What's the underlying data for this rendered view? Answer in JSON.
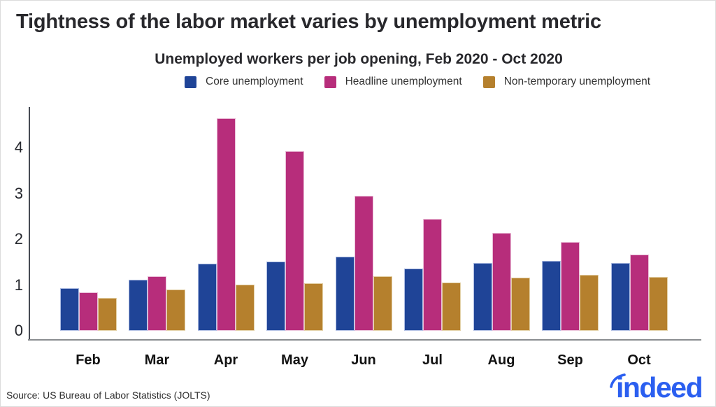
{
  "header": {
    "title": "Tightness of the labor market varies by unemployment metric",
    "subtitle": "Unemployed workers per job opening, Feb 2020 - Oct 2020"
  },
  "chart_data": {
    "type": "bar",
    "title": "Tightness of the labor market varies by unemployment metric",
    "subtitle": "Unemployed workers per job opening, Feb 2020 - Oct 2020",
    "categories": [
      "Feb",
      "Mar",
      "Apr",
      "May",
      "Jun",
      "Jul",
      "Aug",
      "Sep",
      "Oct"
    ],
    "series": [
      {
        "name": "Core unemployment",
        "color": "#1F4497",
        "border_color": "#AEBDE3",
        "values": [
          0.93,
          1.12,
          1.47,
          1.51,
          1.62,
          1.36,
          1.49,
          1.53,
          1.48
        ]
      },
      {
        "name": "Headline unemployment",
        "color": "#B72D7B",
        "border_color": "#EABFD8",
        "values": [
          0.84,
          1.2,
          4.65,
          3.93,
          2.95,
          2.45,
          2.14,
          1.94,
          1.67
        ]
      },
      {
        "name": "Non-temporary unemployment",
        "color": "#B5802D",
        "border_color": "#E2CFA4",
        "values": [
          0.72,
          0.9,
          1.01,
          1.04,
          1.19,
          1.06,
          1.16,
          1.22,
          1.18
        ]
      }
    ],
    "xlabel": "",
    "ylabel": "",
    "ylim": [
      0,
      4.8
    ],
    "yticks": [
      0,
      1,
      2,
      3,
      4
    ],
    "grid": false,
    "legend_position": "top"
  },
  "footer": {
    "source": "Source: US Bureau of Labor Statistics (JOLTS)",
    "logo_text": "indeed"
  }
}
